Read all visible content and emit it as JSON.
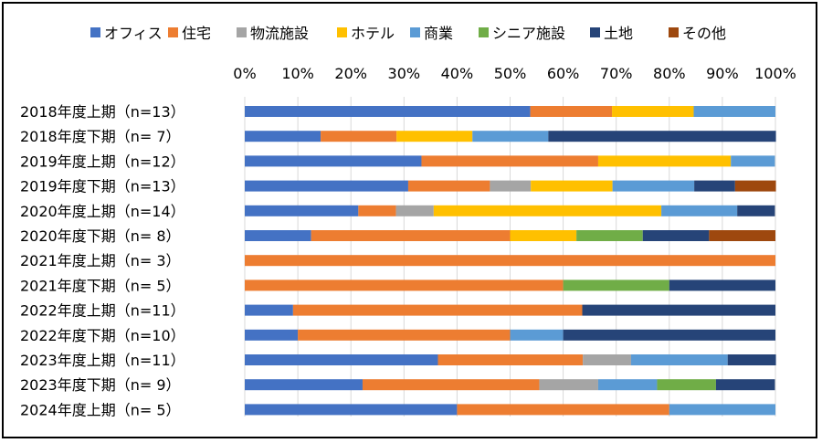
{
  "chart_data": {
    "type": "bar",
    "orientation": "horizontal",
    "stacked": "percent",
    "title": "",
    "xlabel": "",
    "ylabel": "",
    "xlim": [
      0,
      100
    ],
    "x_ticks": [
      "0%",
      "10%",
      "20%",
      "30%",
      "40%",
      "50%",
      "60%",
      "70%",
      "80%",
      "90%",
      "100%"
    ],
    "grid": true,
    "legend_position": "top",
    "categories": [
      "2018年度上期（n=13）",
      "2018年度下期（n=  7）",
      "2019年度上期（n=12）",
      "2019年度下期（n=13）",
      "2020年度上期（n=14）",
      "2020年度下期（n=  8）",
      "2021年度上期（n=  3）",
      "2021年度下期（n=  5）",
      "2022年度上期（n=11）",
      "2022年度下期（n=10）",
      "2023年度上期（n=11）",
      "2023年度下期（n=  9）",
      "2024年度上期（n=  5）"
    ],
    "series": [
      {
        "name": "オフィス",
        "color": "#4472C4",
        "values": [
          53.8,
          14.3,
          33.3,
          30.8,
          21.4,
          12.5,
          0,
          0,
          9.1,
          10.0,
          36.4,
          22.2,
          40.0
        ]
      },
      {
        "name": "住宅",
        "color": "#ED7D31",
        "values": [
          15.4,
          14.3,
          33.3,
          15.4,
          7.1,
          37.5,
          100,
          60.0,
          54.5,
          40.0,
          27.3,
          33.3,
          40.0
        ]
      },
      {
        "name": "物流施設",
        "color": "#A5A5A5",
        "values": [
          0,
          0,
          0,
          7.7,
          7.1,
          0,
          0,
          0,
          0,
          0,
          9.1,
          11.1,
          0
        ]
      },
      {
        "name": "ホテル",
        "color": "#FFC000",
        "values": [
          15.4,
          14.3,
          25.0,
          15.4,
          42.9,
          12.5,
          0,
          0,
          0,
          0,
          0,
          0,
          0
        ]
      },
      {
        "name": "商業",
        "color": "#5B9BD5",
        "values": [
          15.4,
          14.3,
          8.3,
          15.4,
          14.3,
          0,
          0,
          0,
          0,
          10.0,
          18.2,
          11.1,
          20.0
        ]
      },
      {
        "name": "シニア施設",
        "color": "#70AD47",
        "values": [
          0,
          0,
          0,
          0,
          0,
          12.5,
          0,
          20.0,
          0,
          0,
          0,
          11.1,
          0
        ]
      },
      {
        "name": "土地",
        "color": "#264478",
        "values": [
          0,
          42.9,
          0,
          7.7,
          7.1,
          12.5,
          0,
          20.0,
          36.4,
          40.0,
          9.1,
          11.1,
          0
        ]
      },
      {
        "name": "その他",
        "color": "#9E480E",
        "values": [
          0,
          0,
          0,
          7.7,
          0,
          12.5,
          0,
          0,
          0,
          0,
          0,
          0,
          0
        ]
      }
    ]
  }
}
